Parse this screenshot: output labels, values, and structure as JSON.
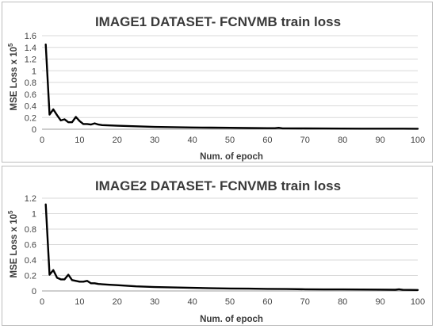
{
  "chart_data": [
    {
      "type": "line",
      "title": "IMAGE1 DATASET- FCNVMB train loss",
      "xlabel": "Num. of epoch",
      "ylabel": {
        "text": "MSE Loss  x 10",
        "exponent": "5"
      },
      "xlim": [
        0,
        100
      ],
      "ylim": [
        0,
        1.6
      ],
      "xticks": [
        0,
        10,
        20,
        30,
        40,
        50,
        60,
        70,
        80,
        90,
        100
      ],
      "yticks": [
        0,
        0.2,
        0.4,
        0.6,
        0.8,
        1,
        1.2,
        1.4,
        1.6
      ],
      "grid": "horizontal",
      "series": [
        {
          "color": "#000000",
          "x": [
            1,
            2,
            3,
            4,
            5,
            6,
            7,
            8,
            9,
            10,
            11,
            12,
            13,
            14,
            15,
            16,
            18,
            20,
            25,
            30,
            35,
            40,
            45,
            50,
            55,
            60,
            62,
            63,
            64,
            65,
            70,
            75,
            80,
            85,
            90,
            95,
            100
          ],
          "y": [
            1.45,
            0.25,
            0.34,
            0.24,
            0.15,
            0.17,
            0.12,
            0.12,
            0.21,
            0.14,
            0.09,
            0.09,
            0.08,
            0.1,
            0.08,
            0.07,
            0.065,
            0.06,
            0.05,
            0.04,
            0.035,
            0.03,
            0.027,
            0.024,
            0.02,
            0.018,
            0.017,
            0.025,
            0.015,
            0.015,
            0.013,
            0.012,
            0.011,
            0.01,
            0.01,
            0.009,
            0.008
          ]
        }
      ]
    },
    {
      "type": "line",
      "title": "IMAGE2 DATASET- FCNVMB train loss",
      "xlabel": "Num. of epoch",
      "ylabel": {
        "text": "MSE Loss  x 10",
        "exponent": "5"
      },
      "xlim": [
        0,
        100
      ],
      "ylim": [
        0,
        1.2
      ],
      "xticks": [
        0,
        10,
        20,
        30,
        40,
        50,
        60,
        70,
        80,
        90,
        100
      ],
      "yticks": [
        0,
        0.2,
        0.4,
        0.6,
        0.8,
        1,
        1.2
      ],
      "grid": "horizontal",
      "series": [
        {
          "color": "#000000",
          "x": [
            1,
            2,
            3,
            4,
            5,
            6,
            7,
            8,
            9,
            10,
            11,
            12,
            13,
            14,
            15,
            18,
            20,
            25,
            30,
            35,
            40,
            45,
            50,
            55,
            60,
            65,
            70,
            75,
            80,
            85,
            90,
            94,
            95,
            96,
            100
          ],
          "y": [
            1.12,
            0.21,
            0.27,
            0.17,
            0.15,
            0.15,
            0.21,
            0.14,
            0.13,
            0.12,
            0.12,
            0.13,
            0.1,
            0.1,
            0.09,
            0.08,
            0.075,
            0.06,
            0.05,
            0.045,
            0.04,
            0.035,
            0.032,
            0.03,
            0.027,
            0.025,
            0.022,
            0.02,
            0.019,
            0.018,
            0.017,
            0.015,
            0.022,
            0.014,
            0.012
          ]
        }
      ]
    }
  ]
}
